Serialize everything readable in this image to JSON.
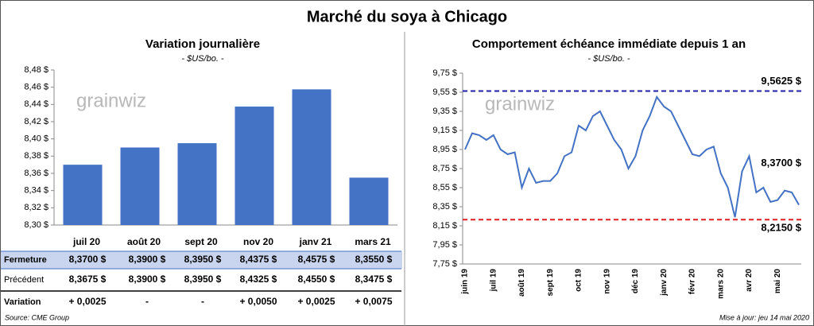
{
  "title": "Marché du soya à Chicago",
  "watermark": "grainwiz",
  "chart_data": [
    {
      "type": "bar",
      "title": "Variation journalière",
      "subtitle": "- $US/bo. -",
      "categories": [
        "juil 20",
        "août 20",
        "sept 20",
        "nov 20",
        "janv 21",
        "mars 21"
      ],
      "values": [
        8.37,
        8.39,
        8.395,
        8.4375,
        8.4575,
        8.355
      ],
      "color": "#4472c4",
      "ylim": [
        8.3,
        8.48
      ],
      "yticks": [
        {
          "value": 8.3,
          "label": "8,30 $"
        },
        {
          "value": 8.32,
          "label": "8,32 $"
        },
        {
          "value": 8.34,
          "label": "8,34 $"
        },
        {
          "value": 8.36,
          "label": "8,36 $"
        },
        {
          "value": 8.38,
          "label": "8,38 $"
        },
        {
          "value": 8.4,
          "label": "8,40 $"
        },
        {
          "value": 8.42,
          "label": "8,42 $"
        },
        {
          "value": 8.44,
          "label": "8,44 $"
        },
        {
          "value": 8.46,
          "label": "8,46 $"
        },
        {
          "value": 8.48,
          "label": "8,48 $"
        }
      ]
    },
    {
      "type": "line",
      "title": "Comportement  échéance immédiate depuis 1 an",
      "subtitle": "- $US/bo. -",
      "categories": [
        "juin 19",
        null,
        null,
        null,
        "juil 19",
        null,
        null,
        null,
        "août 19",
        null,
        null,
        null,
        "sept 19",
        null,
        null,
        null,
        "oct 19",
        null,
        null,
        null,
        "nov 19",
        null,
        null,
        null,
        "déc 19",
        null,
        null,
        null,
        "janv 20",
        null,
        null,
        null,
        "févr 20",
        null,
        null,
        null,
        "mars 20",
        null,
        null,
        null,
        "avr 20",
        null,
        null,
        null,
        "mai 20",
        null,
        null,
        null
      ],
      "series": [
        {
          "color": "#4472c4",
          "values": [
            8.95,
            9.12,
            9.1,
            9.05,
            9.1,
            8.95,
            8.9,
            8.92,
            8.55,
            8.75,
            8.6,
            8.62,
            8.62,
            8.7,
            8.88,
            8.92,
            9.2,
            9.15,
            9.3,
            9.35,
            9.2,
            9.05,
            8.95,
            8.75,
            8.88,
            9.15,
            9.3,
            9.5,
            9.4,
            9.35,
            9.2,
            9.05,
            8.9,
            8.88,
            8.95,
            8.98,
            8.7,
            8.55,
            8.24,
            8.72,
            8.88,
            8.5,
            8.55,
            8.4,
            8.42,
            8.52,
            8.5,
            8.37
          ],
          "value_labels": [
            null,
            null,
            null,
            null,
            null,
            null,
            null,
            null,
            null,
            null,
            null,
            null,
            null,
            null,
            null,
            null,
            null,
            null,
            null,
            null,
            null,
            null,
            null,
            null,
            null,
            null,
            null,
            null,
            null,
            null,
            null,
            null,
            null,
            null,
            null,
            null,
            null,
            null,
            null,
            null,
            null,
            null,
            null,
            null,
            null,
            null,
            null,
            "8,3700 $"
          ]
        }
      ],
      "reference_lines": [
        {
          "value": 9.5625,
          "label": "9,5625 $",
          "color": "#1f1fa8"
        },
        {
          "value": 8.215,
          "label": "8,2150 $",
          "color": "#e02020"
        }
      ],
      "ylim": [
        7.75,
        9.75
      ],
      "yticks": [
        {
          "value": 7.75,
          "label": "7,75 $"
        },
        {
          "value": 7.95,
          "label": "7,95 $"
        },
        {
          "value": 8.15,
          "label": "8,15 $"
        },
        {
          "value": 8.35,
          "label": "8,35 $"
        },
        {
          "value": 8.55,
          "label": "8,55 $"
        },
        {
          "value": 8.75,
          "label": "8,75 $"
        },
        {
          "value": 8.95,
          "label": "8,95 $"
        },
        {
          "value": 9.15,
          "label": "9,15 $"
        },
        {
          "value": 9.35,
          "label": "9,35 $"
        },
        {
          "value": 9.55,
          "label": "9,55 $"
        },
        {
          "value": 9.75,
          "label": "9,75 $"
        }
      ]
    }
  ],
  "table": {
    "rows": [
      {
        "label": "Fermeture",
        "cells": [
          "8,3700  $",
          "8,3900  $",
          "8,3950  $",
          "8,4375  $",
          "8,4575  $",
          "8,3550  $"
        ]
      },
      {
        "label": "Précédent",
        "cells": [
          "8,3675  $",
          "8,3900  $",
          "8,3950  $",
          "8,4325  $",
          "8,4550  $",
          "8,3475  $"
        ]
      },
      {
        "label": "Variation",
        "cells": [
          "+ 0,0025",
          "-",
          "-",
          "+ 0,0050",
          "+ 0,0025",
          "+ 0,0075"
        ]
      }
    ]
  },
  "source": "Source: CME Group",
  "updated": "Mise à jour: jeu 14 mai 2020"
}
